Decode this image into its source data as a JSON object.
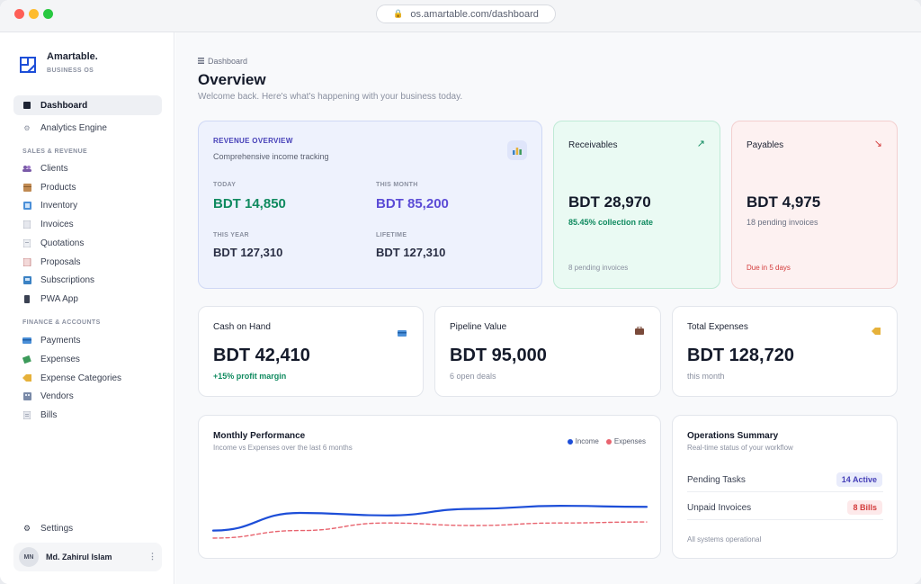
{
  "browser": {
    "url": "os.amartable.com/dashboard"
  },
  "sidebar": {
    "brand": "Amartable.",
    "brand_sub": "BUSINESS OS",
    "items_top": [
      {
        "label": "Dashboard",
        "icon": "dashboard-icon"
      },
      {
        "label": "Analytics Engine",
        "icon": "gear-icon"
      }
    ],
    "section_sales": "SALES & REVENUE",
    "items_sales": [
      {
        "label": "Clients",
        "icon": "users-icon"
      },
      {
        "label": "Products",
        "icon": "box-icon"
      },
      {
        "label": "Inventory",
        "icon": "inventory-icon"
      },
      {
        "label": "Invoices",
        "icon": "invoice-icon"
      },
      {
        "label": "Quotations",
        "icon": "quotation-icon"
      },
      {
        "label": "Proposals",
        "icon": "proposal-icon"
      },
      {
        "label": "Subscriptions",
        "icon": "subscription-icon"
      },
      {
        "label": "PWA App",
        "icon": "phone-icon"
      }
    ],
    "section_finance": "FINANCE & ACCOUNTS",
    "items_finance": [
      {
        "label": "Payments",
        "icon": "card-icon"
      },
      {
        "label": "Expenses",
        "icon": "money-icon"
      },
      {
        "label": "Expense Categories",
        "icon": "tag-icon"
      },
      {
        "label": "Vendors",
        "icon": "building-icon"
      },
      {
        "label": "Bills",
        "icon": "bill-icon"
      }
    ],
    "settings": "Settings",
    "user_initials": "MN",
    "user_name": "Md. Zahirul Islam"
  },
  "header": {
    "breadcrumb": "Dashboard",
    "title": "Overview",
    "subtitle": "Welcome back. Here's what's happening with your business today."
  },
  "revenue": {
    "heading": "REVENUE OVERVIEW",
    "sub": "Comprehensive income tracking",
    "today_label": "TODAY",
    "today_value": "BDT 14,850",
    "month_label": "THIS MONTH",
    "month_value": "BDT 85,200",
    "year_label": "THIS YEAR",
    "year_value": "BDT 127,310",
    "lifetime_label": "LIFETIME",
    "lifetime_value": "BDT 127,310"
  },
  "receivables": {
    "title": "Receivables",
    "value": "BDT 28,970",
    "note": "85.45% collection rate",
    "footer": "8 pending invoices"
  },
  "payables": {
    "title": "Payables",
    "value": "BDT 4,975",
    "note": "18 pending invoices",
    "footer": "Due in 5 days"
  },
  "cash": {
    "title": "Cash on Hand",
    "value": "BDT 42,410",
    "note": "+15% profit margin"
  },
  "pipeline": {
    "title": "Pipeline Value",
    "value": "BDT 95,000",
    "note": "6 open deals"
  },
  "expenses": {
    "title": "Total Expenses",
    "value": "BDT 128,720",
    "note": "this month"
  },
  "performance": {
    "title": "Monthly Performance",
    "sub": "Income vs Expenses over the last 6 months",
    "legend_income": "Income",
    "legend_expenses": "Expenses"
  },
  "operations": {
    "title": "Operations Summary",
    "sub": "Real-time status of your workflow",
    "row1_label": "Pending Tasks",
    "row1_badge": "14 Active",
    "row2_label": "Unpaid Invoices",
    "row2_badge": "8 Bills",
    "footer": "All systems operational"
  },
  "colors": {
    "accent": "#2563eb",
    "income": "#1d4ed8",
    "expense": "#e8646f",
    "green": "#0f8a5f",
    "purple": "#5b4bd6",
    "red": "#d33b3b"
  },
  "chart_data": {
    "type": "line",
    "title": "Monthly Performance",
    "x": [
      1,
      2,
      3,
      4,
      5,
      6
    ],
    "series": [
      {
        "name": "Income",
        "values": [
          0.15,
          0.5,
          0.45,
          0.58,
          0.64,
          0.62
        ]
      },
      {
        "name": "Expenses",
        "values": [
          0.0,
          0.15,
          0.3,
          0.25,
          0.3,
          0.32
        ]
      }
    ]
  }
}
